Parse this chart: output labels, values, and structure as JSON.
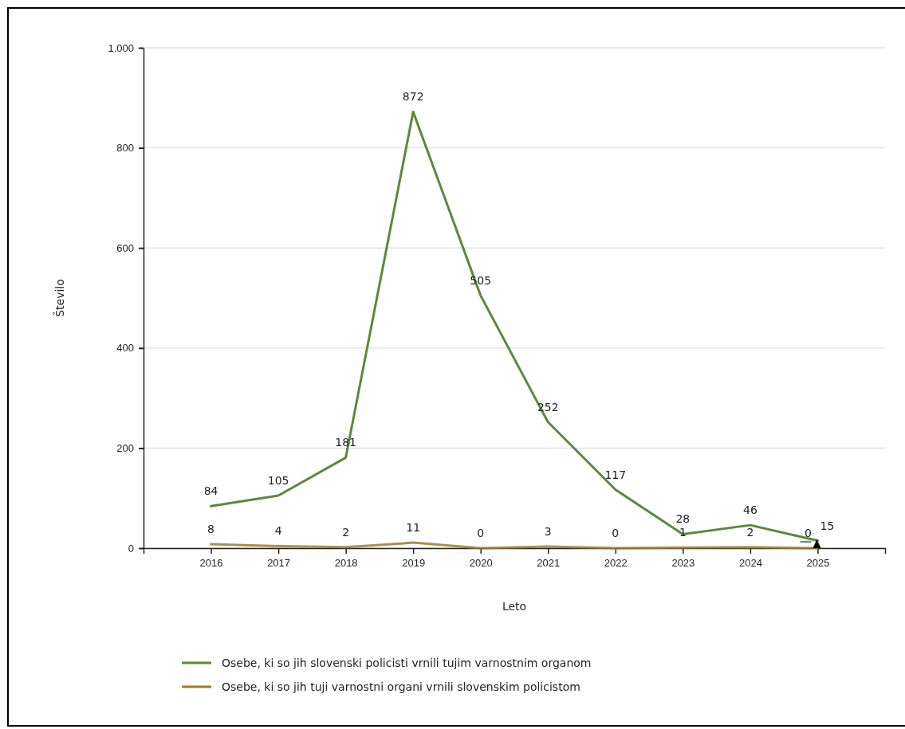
{
  "chart_data": {
    "type": "line",
    "xlabel": "Leto",
    "ylabel": "Število",
    "categories": [
      "2016",
      "2017",
      "2018",
      "2019",
      "2020",
      "2021",
      "2022",
      "2023",
      "2024",
      "2025"
    ],
    "series": [
      {
        "name": "Osebe, ki so jih slovenski policisti vrnili tujim varnostnim organom",
        "color": "#5b8a3a",
        "values": [
          84,
          105,
          181,
          872,
          505,
          252,
          117,
          28,
          46,
          15
        ]
      },
      {
        "name": "Osebe, ki so jih tuji varnostni organi vrnili slovenskim policistom",
        "color": "#a07a2c",
        "values": [
          8,
          4,
          2,
          11,
          0,
          3,
          0,
          1,
          2,
          0
        ]
      }
    ],
    "ylim": [
      0,
      1000
    ],
    "yticks": [
      0,
      200,
      400,
      600,
      800,
      {
        "value": 1000,
        "label": "1.000"
      }
    ],
    "grid": "y",
    "legend": "bottom",
    "data_labels": true
  }
}
